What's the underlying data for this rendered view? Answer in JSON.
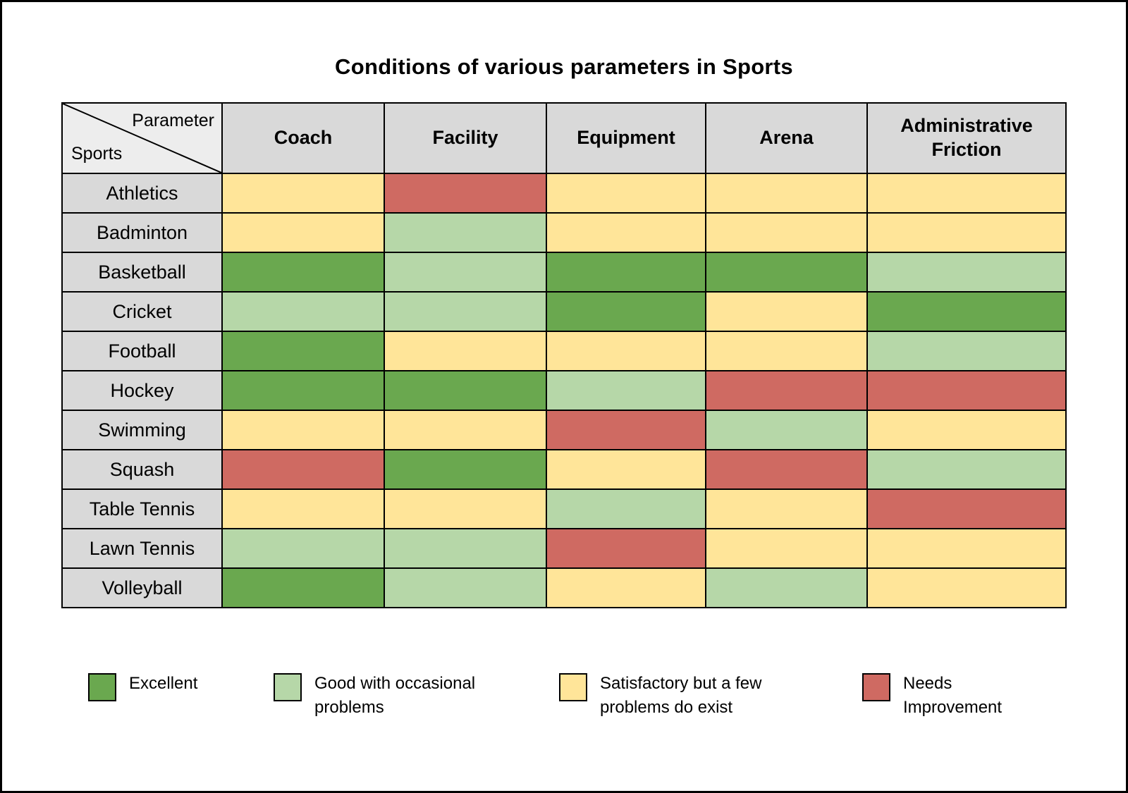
{
  "title": "Conditions of various parameters in Sports",
  "table": {
    "corner": {
      "parameter_label": "Parameter",
      "sports_label": "Sports"
    },
    "columns": [
      "Coach",
      "Facility",
      "Equipment",
      "Arena",
      "Administrative Friction"
    ]
  },
  "colors": {
    "excellent": "#6aa84f",
    "good": "#b6d7a8",
    "satisfactory": "#ffe599",
    "needs_improvement": "#cf6a62"
  },
  "legend": [
    {
      "key": "excellent",
      "label": "Excellent",
      "color": "#6aa84f"
    },
    {
      "key": "good",
      "label": "Good with occasional problems",
      "color": "#b6d7a8"
    },
    {
      "key": "satisfactory",
      "label": "Satisfactory but a few problems do exist",
      "color": "#ffe599"
    },
    {
      "key": "needs_improvement",
      "label": "Needs Improvement",
      "color": "#cf6a62"
    }
  ],
  "chart_data": {
    "type": "heatmap",
    "title": "Conditions of various parameters in Sports",
    "columns": [
      "Coach",
      "Facility",
      "Equipment",
      "Arena",
      "Administrative Friction"
    ],
    "rows": [
      "Athletics",
      "Badminton",
      "Basketball",
      "Cricket",
      "Football",
      "Hockey",
      "Swimming",
      "Squash",
      "Table Tennis",
      "Lawn Tennis",
      "Volleyball"
    ],
    "values": [
      [
        "satisfactory",
        "needs_improvement",
        "satisfactory",
        "satisfactory",
        "satisfactory"
      ],
      [
        "satisfactory",
        "good",
        "satisfactory",
        "satisfactory",
        "satisfactory"
      ],
      [
        "excellent",
        "good",
        "excellent",
        "excellent",
        "good"
      ],
      [
        "good",
        "good",
        "excellent",
        "satisfactory",
        "excellent"
      ],
      [
        "excellent",
        "satisfactory",
        "satisfactory",
        "satisfactory",
        "good"
      ],
      [
        "excellent",
        "excellent",
        "good",
        "needs_improvement",
        "needs_improvement"
      ],
      [
        "satisfactory",
        "satisfactory",
        "needs_improvement",
        "good",
        "satisfactory"
      ],
      [
        "needs_improvement",
        "excellent",
        "satisfactory",
        "needs_improvement",
        "good"
      ],
      [
        "satisfactory",
        "satisfactory",
        "good",
        "satisfactory",
        "needs_improvement"
      ],
      [
        "good",
        "good",
        "needs_improvement",
        "satisfactory",
        "satisfactory"
      ],
      [
        "excellent",
        "good",
        "satisfactory",
        "good",
        "satisfactory"
      ]
    ],
    "legend_scale": {
      "excellent": "Excellent",
      "good": "Good with occasional problems",
      "satisfactory": "Satisfactory but a few problems do exist",
      "needs_improvement": "Needs Improvement"
    }
  }
}
